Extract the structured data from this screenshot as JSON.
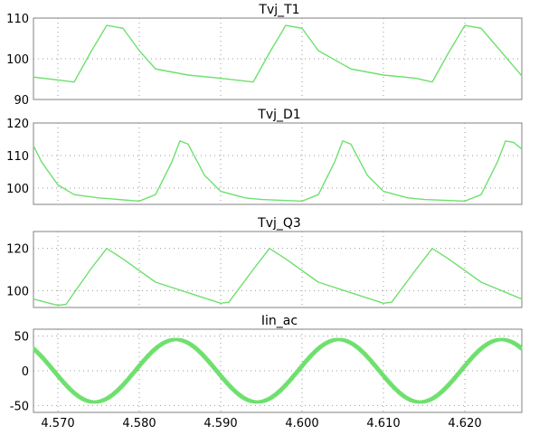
{
  "page": {
    "background": "#ffffff",
    "trace_color": "#6ee06e"
  },
  "chart_data": [
    {
      "type": "line",
      "title": "Tvj_T1",
      "xlim": [
        4.567,
        4.627
      ],
      "ylim": [
        90,
        110
      ],
      "yticks": [
        90,
        100,
        110
      ],
      "grid": "dotted",
      "series": [
        {
          "x": [
            4.567,
            4.57,
            4.572,
            4.574,
            4.576,
            4.578,
            4.58,
            4.582,
            4.586,
            4.59,
            4.594,
            4.596,
            4.598,
            4.6,
            4.602,
            4.606,
            4.61,
            4.614,
            4.616,
            4.618,
            4.62,
            4.622,
            4.627
          ],
          "y": [
            95.5,
            94.8,
            94.3,
            101.5,
            108.2,
            107.5,
            102.0,
            97.5,
            96.0,
            95.2,
            94.3,
            101.5,
            108.2,
            107.5,
            102.0,
            97.5,
            96.0,
            95.2,
            94.3,
            101.5,
            108.2,
            107.5,
            95.8
          ]
        }
      ]
    },
    {
      "type": "line",
      "title": "Tvj_D1",
      "xlim": [
        4.567,
        4.627
      ],
      "ylim": [
        95,
        120
      ],
      "yticks": [
        100,
        110,
        120
      ],
      "grid": "dotted",
      "series": [
        {
          "x": [
            4.567,
            4.568,
            4.57,
            4.572,
            4.575,
            4.58,
            4.582,
            4.584,
            4.585,
            4.586,
            4.588,
            4.59,
            4.593,
            4.595,
            4.6,
            4.602,
            4.604,
            4.605,
            4.606,
            4.608,
            4.61,
            4.613,
            4.615,
            4.62,
            4.622,
            4.624,
            4.625,
            4.626,
            4.627
          ],
          "y": [
            113,
            108,
            101,
            98,
            97,
            96,
            98,
            108,
            114.5,
            113.5,
            104,
            99,
            97,
            96.5,
            96,
            98,
            108,
            114.5,
            113.5,
            104,
            99,
            97,
            96.5,
            96,
            98,
            108,
            114.5,
            114,
            112
          ]
        }
      ]
    },
    {
      "type": "line",
      "title": "Tvj_Q3",
      "xlim": [
        4.567,
        4.627
      ],
      "ylim": [
        92,
        128
      ],
      "yticks": [
        100,
        120
      ],
      "grid": "dotted",
      "series": [
        {
          "x": [
            4.567,
            4.57,
            4.571,
            4.574,
            4.576,
            4.578,
            4.582,
            4.586,
            4.59,
            4.591,
            4.594,
            4.596,
            4.598,
            4.602,
            4.606,
            4.61,
            4.611,
            4.614,
            4.616,
            4.618,
            4.622,
            4.627
          ],
          "y": [
            96,
            93,
            93.5,
            110,
            120,
            115,
            104,
            99,
            94,
            94.5,
            110,
            120,
            115,
            104,
            99,
            94,
            94.5,
            110,
            120,
            115,
            104,
            96
          ]
        }
      ]
    },
    {
      "type": "line",
      "title": "Iin_ac",
      "xlim": [
        4.567,
        4.627
      ],
      "ylim": [
        -60,
        60
      ],
      "yticks": [
        -50,
        0,
        50
      ],
      "xticks": [
        4.57,
        4.58,
        4.59,
        4.6,
        4.61,
        4.62
      ],
      "xtick_labels": [
        "4.570",
        "4.580",
        "4.590",
        "4.600",
        "4.610",
        "4.620"
      ],
      "grid": "dotted",
      "series": [
        {
          "function": "sine",
          "amplitude": 45,
          "period": 0.02,
          "peak_x": 4.5845,
          "ripple": 4
        }
      ]
    }
  ]
}
